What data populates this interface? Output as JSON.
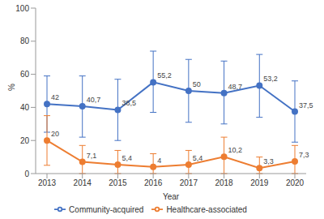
{
  "chart_data": {
    "type": "line",
    "x_label": "Year",
    "y_label": "%",
    "categories": [
      "2013",
      "2014",
      "2015",
      "2016",
      "2017",
      "2018",
      "2019",
      "2020"
    ],
    "series": [
      {
        "name": "Community-acquired",
        "color": "#4472c4",
        "marker": "circle",
        "values": [
          42,
          40.7,
          38.5,
          55.2,
          50,
          48.7,
          53.2,
          37.5
        ],
        "value_labels": [
          "42",
          "40,7",
          "38,5",
          "55,2",
          "50",
          "48,7",
          "53,2",
          "37,5"
        ],
        "ci_low": [
          25,
          22,
          20,
          37,
          31,
          30,
          34,
          19
        ],
        "ci_high": [
          59,
          59,
          57,
          74,
          69,
          68,
          72,
          56
        ]
      },
      {
        "name": "Healthcare-associated",
        "color": "#ed7d31",
        "marker": "circle",
        "values": [
          20,
          7.1,
          5.4,
          4,
          5.4,
          10.2,
          3.3,
          7.3
        ],
        "value_labels": [
          "20",
          "7,1",
          "5,4",
          "4",
          "5,4",
          "10,2",
          "3,3",
          "7,3"
        ],
        "ci_low": [
          5,
          0,
          0,
          0,
          0,
          0,
          0,
          0
        ],
        "ci_high": [
          35,
          17,
          14,
          12,
          14,
          22,
          10,
          17
        ]
      }
    ],
    "ylim": [
      0,
      100
    ],
    "yticks": [
      0,
      20,
      40,
      60,
      80,
      100
    ],
    "grid": false,
    "legend": "bottom",
    "data_labels": true
  }
}
